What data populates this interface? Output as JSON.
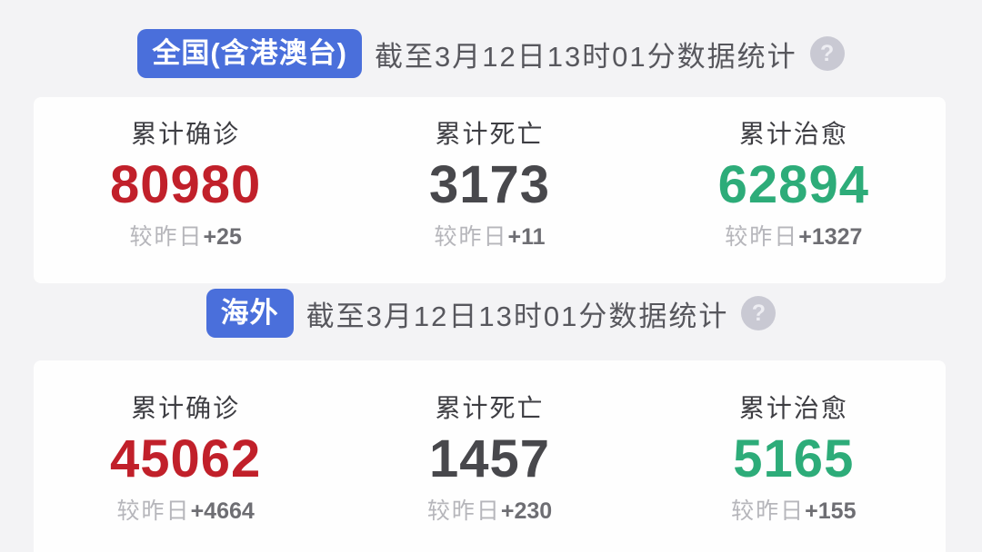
{
  "colors": {
    "badge_blue": "#4a6fdb",
    "confirmed_red": "#c1202a",
    "deaths_dark": "#48484c",
    "cured_green": "#2dac79",
    "page_background": "#f3f3f5",
    "card_background": "#fefefe"
  },
  "icons": {
    "help_glyph": "?"
  },
  "sections": [
    {
      "badge": "全国(含港澳台)",
      "as_of": "截至3月12日13时01分数据统计",
      "stats": [
        {
          "label": "累计确诊",
          "value": "80980",
          "delta_prefix": "较昨日",
          "delta": "+25",
          "color": "#c1202a"
        },
        {
          "label": "累计死亡",
          "value": "3173",
          "delta_prefix": "较昨日",
          "delta": "+11",
          "color": "#48484c"
        },
        {
          "label": "累计治愈",
          "value": "62894",
          "delta_prefix": "较昨日",
          "delta": "+1327",
          "color": "#2dac79"
        }
      ]
    },
    {
      "badge": "海外",
      "as_of": "截至3月12日13时01分数据统计",
      "stats": [
        {
          "label": "累计确诊",
          "value": "45062",
          "delta_prefix": "较昨日",
          "delta": "+4664",
          "color": "#c1202a"
        },
        {
          "label": "累计死亡",
          "value": "1457",
          "delta_prefix": "较昨日",
          "delta": "+230",
          "color": "#48484c"
        },
        {
          "label": "累计治愈",
          "value": "5165",
          "delta_prefix": "较昨日",
          "delta": "+155",
          "color": "#2dac79"
        }
      ]
    }
  ]
}
